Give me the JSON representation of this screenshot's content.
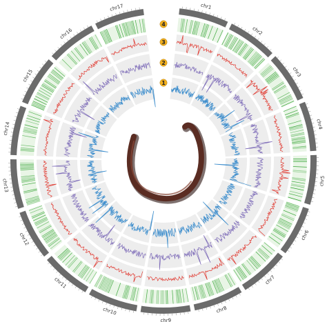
{
  "chromosomes": [
    {
      "label": "chr1"
    },
    {
      "label": "chr2"
    },
    {
      "label": "chr3"
    },
    {
      "label": "chr4"
    },
    {
      "label": "chr5"
    },
    {
      "label": "chr6"
    },
    {
      "label": "chr7"
    },
    {
      "label": "chr8"
    },
    {
      "label": "chr9"
    },
    {
      "label": "chr10"
    },
    {
      "label": "chr11"
    },
    {
      "label": "chr12"
    },
    {
      "label": "chr13"
    },
    {
      "label": "chr14"
    },
    {
      "label": "chr15"
    },
    {
      "label": "chr16"
    },
    {
      "label": "chr17"
    }
  ],
  "track_badges": [
    "1",
    "2",
    "3",
    "4"
  ],
  "colors": {
    "ideogram": "#6b6b6b",
    "gene_density": "#2ca02c",
    "track_band": "#ededed",
    "track3_line": "#e0362d",
    "track2_line": "#7d6bb8",
    "track1_line": "#3a8ccc",
    "badge_fill": "#f2b01e",
    "worm_body": "#5a2c22",
    "worm_shadow": "#2a130f"
  },
  "icons": {
    "centerpiece": "earthworm-photo"
  }
}
